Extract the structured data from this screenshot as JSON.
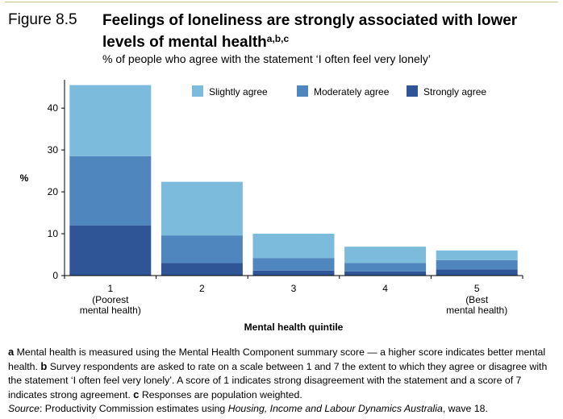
{
  "figure": {
    "label": "Figure 8.5",
    "title": "Feelings of loneliness are strongly associated with lower levels of mental health",
    "title_superscript": "a,b,c",
    "subtitle": "% of people who agree with the statement ‘I often feel very lonely’"
  },
  "chart_data": {
    "type": "bar",
    "stacked": true,
    "categories": [
      {
        "main": "1",
        "sub": [
          "(Poorest",
          "mental health)"
        ]
      },
      {
        "main": "2",
        "sub": []
      },
      {
        "main": "3",
        "sub": []
      },
      {
        "main": "4",
        "sub": []
      },
      {
        "main": "5",
        "sub": [
          "(Best",
          "mental health)"
        ]
      }
    ],
    "series": [
      {
        "name": "Strongly agree",
        "color": "#2f5597",
        "values": [
          12,
          3,
          1.2,
          1,
          1.5
        ]
      },
      {
        "name": "Moderately agree",
        "color": "#4f86be",
        "values": [
          16.5,
          6.6,
          3,
          2,
          2.2
        ]
      },
      {
        "name": "Slightly agree",
        "color": "#7dbbdd",
        "values": [
          17,
          12.8,
          5.8,
          3.9,
          2.3
        ]
      }
    ],
    "legend_order": [
      "Slightly agree",
      "Moderately agree",
      "Strongly agree"
    ],
    "legend_placement": "top-right",
    "ylabel": "%",
    "xlabel": "Mental health quintile",
    "yticks": [
      0,
      10,
      20,
      30,
      40
    ],
    "ylim": [
      0,
      46
    ],
    "grid": false
  },
  "notes": {
    "a_marker": "a",
    "a_text": " Mental health is measured using the Mental Health Component summary score — a higher score indicates better mental health. ",
    "b_marker": "b",
    "b_text": " Survey respondents are asked to rate on a scale between 1 and 7 the extent to which they agree or disagree with the statement ‘I often feel very lonely’. A score of 1 indicates strong disagreement with the statement and a score of 7 indicates strong agreement. ",
    "c_marker": "c",
    "c_text": " Responses are population weighted."
  },
  "source": {
    "label": "Source",
    "text_before": ": Productivity Commission estimates using ",
    "italic": "Housing, Income and Labour Dynamics Australia",
    "text_after": ", wave 18."
  }
}
